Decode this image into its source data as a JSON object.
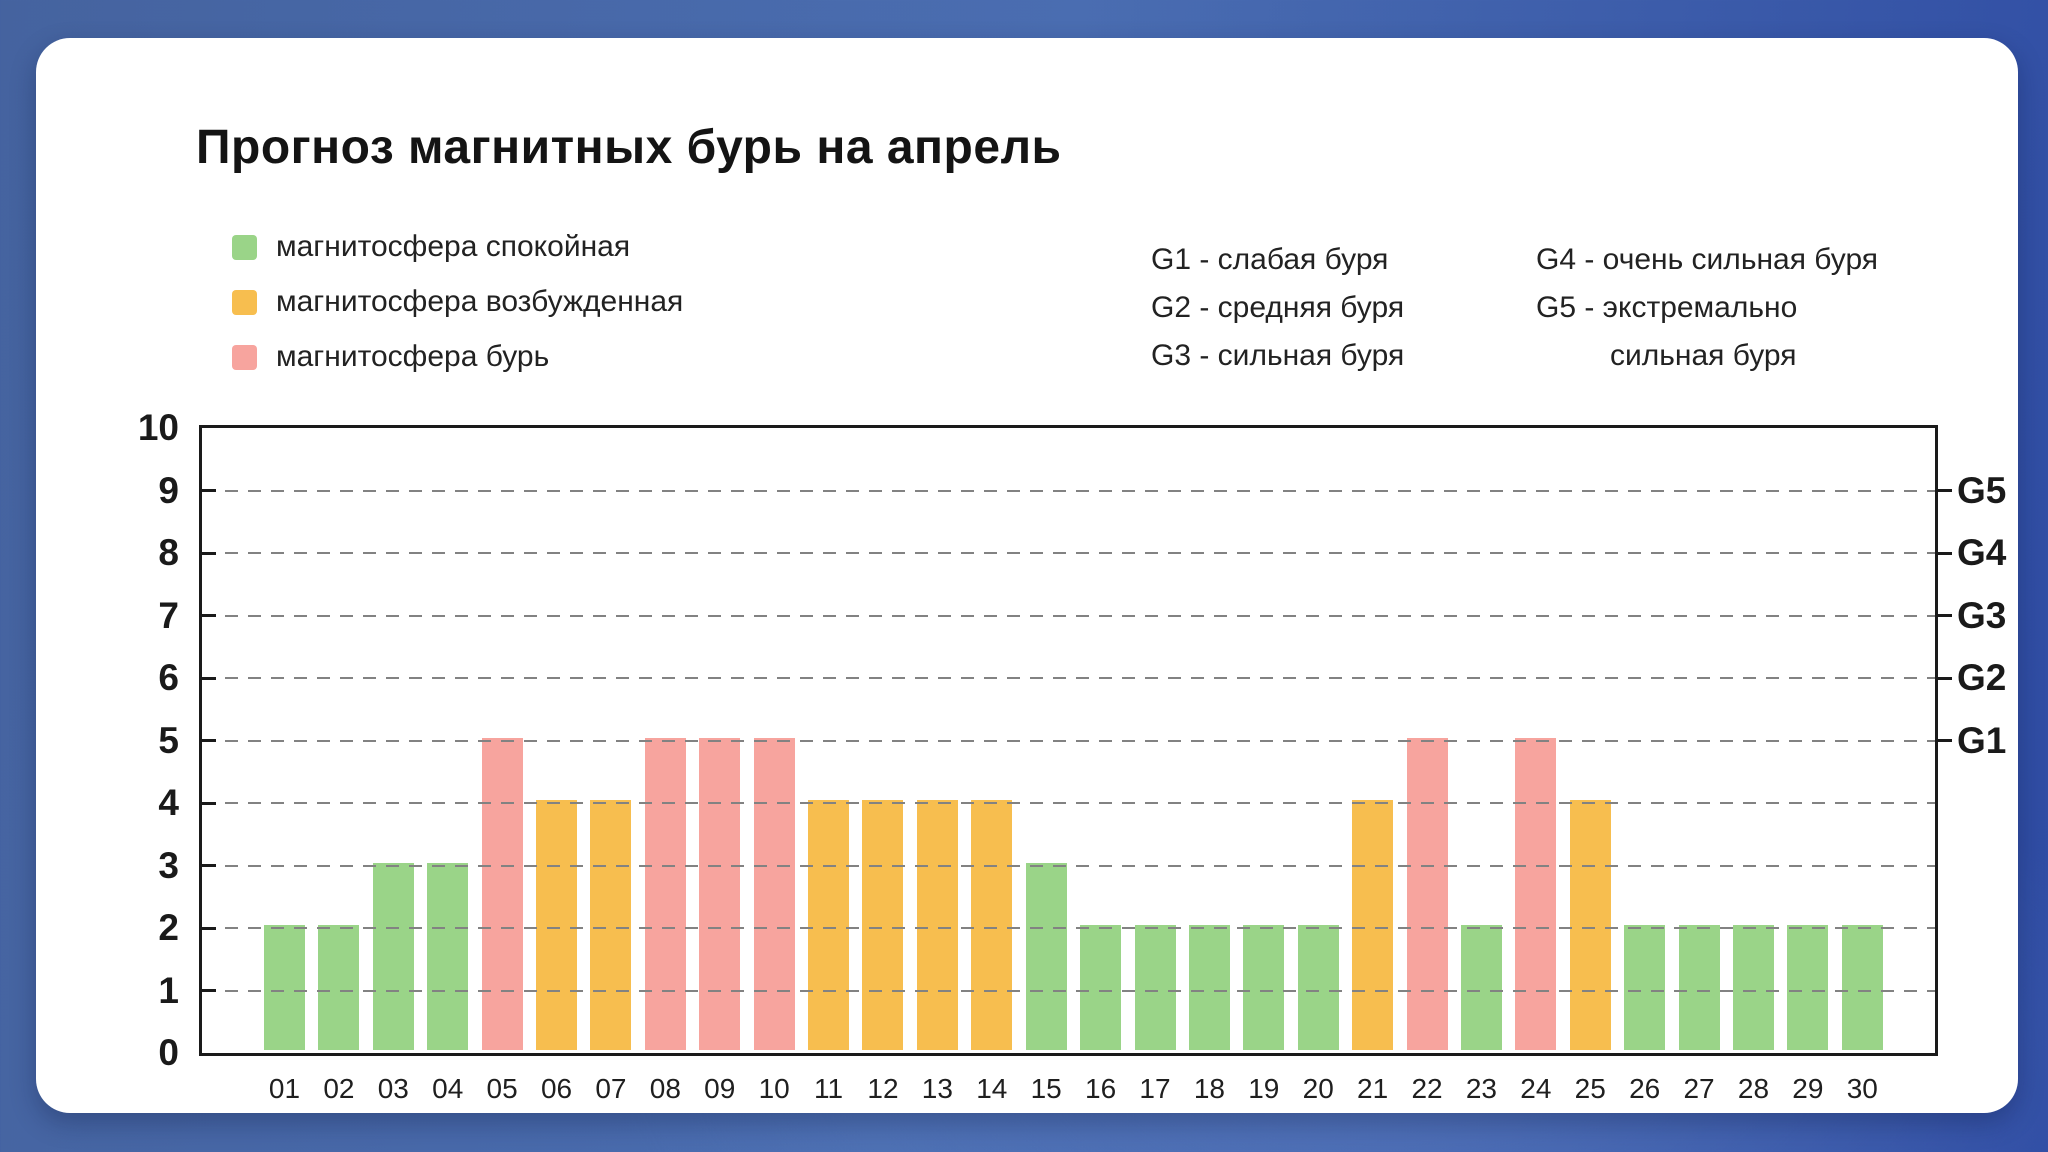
{
  "card": {
    "title": "Прогноз магнитных бурь на апрель"
  },
  "legend": {
    "items": [
      {
        "key": "calm",
        "label": "магнитосфера спокойная",
        "color": "#9ad488"
      },
      {
        "key": "excited",
        "label": "магнитосфера возбужденная",
        "color": "#f7be4f"
      },
      {
        "key": "storm",
        "label": "магнитосфера бурь",
        "color": "#f7a49e"
      }
    ]
  },
  "storm_scale_notes": {
    "column1": [
      "G1 - слабая буря",
      "G2 - средняя буря",
      "G3 - сильная буря"
    ],
    "column2": [
      "G4 - очень сильная буря",
      "G5 - экстремально",
      "сильная буря"
    ]
  },
  "chart_data": {
    "type": "bar",
    "title": "Прогноз магнитных бурь на апрель",
    "categories": [
      "01",
      "02",
      "03",
      "04",
      "05",
      "06",
      "07",
      "08",
      "09",
      "10",
      "11",
      "12",
      "13",
      "14",
      "15",
      "16",
      "17",
      "18",
      "19",
      "20",
      "21",
      "22",
      "23",
      "24",
      "25",
      "26",
      "27",
      "28",
      "29",
      "30"
    ],
    "values": [
      2,
      2,
      3,
      3,
      5,
      4,
      4,
      5,
      5,
      5,
      4,
      4,
      4,
      4,
      3,
      2,
      2,
      2,
      2,
      2,
      4,
      5,
      2,
      5,
      4,
      2,
      2,
      2,
      2,
      2
    ],
    "statuses": [
      "calm",
      "calm",
      "calm",
      "calm",
      "storm",
      "excited",
      "excited",
      "storm",
      "storm",
      "storm",
      "excited",
      "excited",
      "excited",
      "excited",
      "calm",
      "calm",
      "calm",
      "calm",
      "calm",
      "calm",
      "excited",
      "storm",
      "calm",
      "storm",
      "excited",
      "calm",
      "calm",
      "calm",
      "calm",
      "calm"
    ],
    "status_colors": {
      "calm": "#9ad488",
      "excited": "#f7be4f",
      "storm": "#f7a49e"
    },
    "ylim": [
      0,
      10
    ],
    "yticks": [
      0,
      1,
      2,
      3,
      4,
      5,
      6,
      7,
      8,
      9,
      10
    ],
    "gridlines_at": [
      1,
      2,
      3,
      4,
      5,
      6,
      7,
      8,
      9
    ],
    "grid_style": "dashed",
    "right_axis_labels": [
      {
        "label": "G5",
        "value": 9
      },
      {
        "label": "G4",
        "value": 8
      },
      {
        "label": "G3",
        "value": 7
      },
      {
        "label": "G2",
        "value": 6
      },
      {
        "label": "G1",
        "value": 5
      }
    ],
    "legend_position": "top-left",
    "colors": {
      "axis": "#1a1a1a",
      "grid": "#828282",
      "card_bg": "#ffffff"
    }
  }
}
